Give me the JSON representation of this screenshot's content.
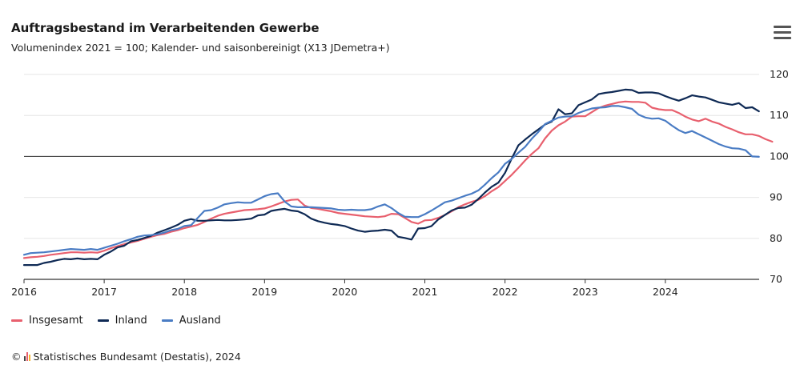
{
  "chart_data": {
    "type": "line",
    "title": "Auftragsbestand im Verarbeitenden Gewerbe",
    "subtitle": "Volumenindex 2021 = 100; Kalender- und saisonbereinigt (X13 JDemetra+)",
    "x_start": "2016-01",
    "x_ticks": [
      "2016",
      "2017",
      "2018",
      "2019",
      "2020",
      "2021",
      "2022",
      "2023",
      "2024"
    ],
    "y_ticks": [
      "70",
      "80",
      "90",
      "100",
      "110",
      "120"
    ],
    "ylim": [
      70,
      120
    ],
    "reference_line": 100,
    "grid": true,
    "legend_position": "bottom-left",
    "series": [
      {
        "name": "Insgesamt",
        "color": "#e8606e",
        "values": [
          75.2,
          75.4,
          75.5,
          75.7,
          76.0,
          76.2,
          76.4,
          76.6,
          76.6,
          76.5,
          76.6,
          76.5,
          77.0,
          77.6,
          78.1,
          78.6,
          79.0,
          79.4,
          79.9,
          80.4,
          80.8,
          81.1,
          81.6,
          82.0,
          82.5,
          82.9,
          83.3,
          84.0,
          84.8,
          85.5,
          86.0,
          86.3,
          86.6,
          86.9,
          87.0,
          87.1,
          87.3,
          87.8,
          88.4,
          89.0,
          89.4,
          89.5,
          88.0,
          87.4,
          87.2,
          86.9,
          86.6,
          86.2,
          86.0,
          85.8,
          85.6,
          85.4,
          85.3,
          85.2,
          85.4,
          86.0,
          85.9,
          85.0,
          84.0,
          83.6,
          84.4,
          84.5,
          85.0,
          85.7,
          86.6,
          87.6,
          88.3,
          88.9,
          89.4,
          90.3,
          91.5,
          92.5,
          94.0,
          95.5,
          97.2,
          99.0,
          100.6,
          102.0,
          104.4,
          106.3,
          107.6,
          108.5,
          109.7,
          109.8,
          109.8,
          110.8,
          111.8,
          112.4,
          112.8,
          113.2,
          113.4,
          113.3,
          113.3,
          113.1,
          111.9,
          111.5,
          111.3,
          111.3,
          110.6,
          109.7,
          109.0,
          108.6,
          109.2,
          108.5,
          108.0,
          107.2,
          106.6,
          105.9,
          105.4,
          105.4,
          105.0,
          104.2,
          103.6
        ]
      },
      {
        "name": "Inland",
        "color": "#0f2a55",
        "values": [
          73.5,
          73.5,
          73.5,
          74.0,
          74.3,
          74.7,
          75.0,
          74.9,
          75.1,
          74.9,
          75.0,
          74.9,
          76.0,
          76.8,
          77.8,
          78.2,
          79.3,
          79.6,
          80.1,
          80.6,
          81.4,
          82.0,
          82.6,
          83.3,
          84.3,
          84.7,
          84.3,
          84.3,
          84.4,
          84.5,
          84.4,
          84.4,
          84.5,
          84.6,
          84.8,
          85.6,
          85.8,
          86.7,
          87.0,
          87.2,
          86.8,
          86.6,
          85.9,
          84.8,
          84.2,
          83.8,
          83.5,
          83.3,
          83.0,
          82.4,
          81.9,
          81.6,
          81.8,
          81.9,
          82.1,
          81.9,
          80.4,
          80.1,
          79.7,
          82.4,
          82.5,
          83.0,
          84.6,
          85.7,
          86.8,
          87.4,
          87.5,
          88.2,
          89.6,
          91.2,
          92.6,
          93.6,
          96.0,
          99.5,
          102.7,
          104.1,
          105.4,
          106.6,
          107.8,
          108.5,
          111.5,
          110.3,
          110.5,
          112.5,
          113.2,
          113.9,
          115.2,
          115.5,
          115.7,
          116.0,
          116.3,
          116.2,
          115.5,
          115.6,
          115.6,
          115.4,
          114.7,
          114.1,
          113.6,
          114.2,
          114.9,
          114.6,
          114.4,
          113.8,
          113.2,
          112.9,
          112.6,
          113.0,
          111.8,
          112.0,
          111.0
        ]
      },
      {
        "name": "Ausland",
        "color": "#4a7cc4",
        "values": [
          76.0,
          76.4,
          76.5,
          76.6,
          76.8,
          77.0,
          77.2,
          77.4,
          77.3,
          77.2,
          77.4,
          77.2,
          77.7,
          78.2,
          78.7,
          79.3,
          79.8,
          80.4,
          80.7,
          80.8,
          81.0,
          81.4,
          82.0,
          82.3,
          83.0,
          83.2,
          85.0,
          86.7,
          86.9,
          87.5,
          88.3,
          88.6,
          88.8,
          88.7,
          88.7,
          89.5,
          90.3,
          90.8,
          91.0,
          89.0,
          87.8,
          87.6,
          87.6,
          87.6,
          87.5,
          87.4,
          87.3,
          87.0,
          86.9,
          87.0,
          86.9,
          86.9,
          87.1,
          87.8,
          88.3,
          87.4,
          86.2,
          85.3,
          85.2,
          85.2,
          85.9,
          86.8,
          87.8,
          88.8,
          89.2,
          89.8,
          90.4,
          90.9,
          91.7,
          93.1,
          94.7,
          96.1,
          98.2,
          99.4,
          100.9,
          102.3,
          104.3,
          106.0,
          107.9,
          108.7,
          109.5,
          109.7,
          109.8,
          110.6,
          111.2,
          111.7,
          111.9,
          112.0,
          112.3,
          112.3,
          112.0,
          111.6,
          110.2,
          109.5,
          109.2,
          109.3,
          108.7,
          107.5,
          106.4,
          105.7,
          106.2,
          105.4,
          104.6,
          103.8,
          103.0,
          102.4,
          102.0,
          101.9,
          101.5,
          100.0,
          99.9
        ]
      }
    ]
  },
  "menu_icon": "hamburger-menu-icon",
  "footer": {
    "copyright_symbol": "©",
    "text": "Statistisches Bundesamt (Destatis), 2024"
  }
}
